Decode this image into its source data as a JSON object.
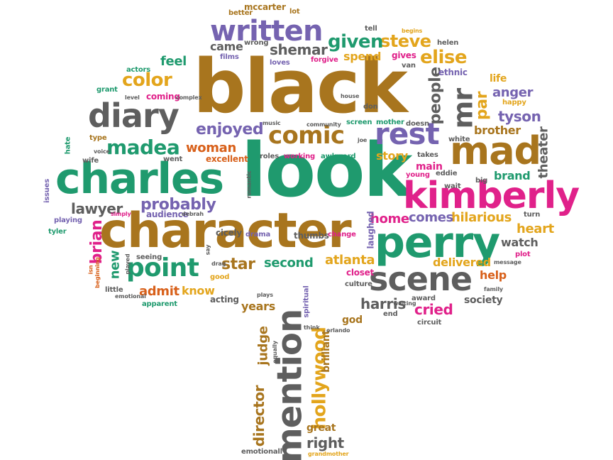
{
  "palette": {
    "brown": "#A8751E",
    "green": "#1F9A6E",
    "gray": "#5E5E5E",
    "purple": "#7563B0",
    "pink": "#E0218A",
    "orange": "#D8601A",
    "gold": "#E3A51C",
    "olive": "#8C9A1E",
    "lightgreen": "#56B64A"
  },
  "words": [
    {
      "text": "black",
      "color": "#A8751E"
    },
    {
      "text": "look",
      "color": "#1F9A6E"
    },
    {
      "text": "character",
      "color": "#A8751E"
    },
    {
      "text": "charles",
      "color": "#1F9A6E"
    },
    {
      "text": "perry",
      "color": "#1F9A6E"
    },
    {
      "text": "kimberly",
      "color": "#E0218A"
    },
    {
      "text": "mad",
      "color": "#A8751E"
    },
    {
      "text": "diary",
      "color": "#5E5E5E"
    },
    {
      "text": "scene",
      "color": "#5E5E5E"
    },
    {
      "text": "mention",
      "color": "#5E5E5E"
    },
    {
      "text": "rest",
      "color": "#7563B0"
    },
    {
      "text": "comic",
      "color": "#A8751E"
    },
    {
      "text": "point",
      "color": "#1F9A6E"
    },
    {
      "text": "written",
      "color": "#7563B0"
    },
    {
      "text": "mr",
      "color": "#5E5E5E"
    },
    {
      "text": "madea",
      "color": "#1F9A6E"
    },
    {
      "text": "color",
      "color": "#E3A51C"
    },
    {
      "text": "hollywood",
      "color": "#E3A51C"
    },
    {
      "text": "probably",
      "color": "#7563B0"
    },
    {
      "text": "enjoyed",
      "color": "#7563B0"
    },
    {
      "text": "lawyer",
      "color": "#5E5E5E"
    },
    {
      "text": "elise",
      "color": "#E3A51C"
    },
    {
      "text": "steve",
      "color": "#E3A51C"
    },
    {
      "text": "given",
      "color": "#1F9A6E"
    },
    {
      "text": "shemar",
      "color": "#5E5E5E"
    },
    {
      "text": "people",
      "color": "#5E5E5E"
    },
    {
      "text": "par",
      "color": "#E3A51C"
    },
    {
      "text": "tyson",
      "color": "#7563B0"
    },
    {
      "text": "brother",
      "color": "#A8751E"
    },
    {
      "text": "anger",
      "color": "#7563B0"
    },
    {
      "text": "theater",
      "color": "#5E5E5E"
    },
    {
      "text": "hilarious",
      "color": "#E3A51C"
    },
    {
      "text": "comes",
      "color": "#7563B0"
    },
    {
      "text": "home",
      "color": "#E0218A"
    },
    {
      "text": "heart",
      "color": "#E3A51C"
    },
    {
      "text": "watch",
      "color": "#5E5E5E"
    },
    {
      "text": "delivered",
      "color": "#E3A51C"
    },
    {
      "text": "atlanta",
      "color": "#E3A51C"
    },
    {
      "text": "second",
      "color": "#1F9A6E"
    },
    {
      "text": "star",
      "color": "#A8751E"
    },
    {
      "text": "cried",
      "color": "#E0218A"
    },
    {
      "text": "harris",
      "color": "#5E5E5E"
    },
    {
      "text": "help",
      "color": "#D8601A"
    },
    {
      "text": "society",
      "color": "#5E5E5E"
    },
    {
      "text": "years",
      "color": "#A8751E"
    },
    {
      "text": "admit",
      "color": "#D8601A"
    },
    {
      "text": "know",
      "color": "#E3A51C"
    },
    {
      "text": "brian",
      "color": "#E0218A"
    },
    {
      "text": "new",
      "color": "#1F9A6E"
    },
    {
      "text": "woman",
      "color": "#D8601A"
    },
    {
      "text": "feel",
      "color": "#1F9A6E"
    },
    {
      "text": "came",
      "color": "#5E5E5E"
    },
    {
      "text": "spend",
      "color": "#E3A51C"
    },
    {
      "text": "story",
      "color": "#E3A51C"
    },
    {
      "text": "main",
      "color": "#E0218A"
    },
    {
      "text": "brand",
      "color": "#1F9A6E"
    },
    {
      "text": "director",
      "color": "#A8751E"
    },
    {
      "text": "judge",
      "color": "#A8751E"
    },
    {
      "text": "right",
      "color": "#5E5E5E"
    },
    {
      "text": "great",
      "color": "#A8751E"
    },
    {
      "text": "god",
      "color": "#A8751E"
    },
    {
      "text": "brilliant",
      "color": "#A8751E"
    },
    {
      "text": "emotionally",
      "color": "#5E5E5E"
    },
    {
      "text": "acting",
      "color": "#5E5E5E"
    },
    {
      "text": "audience",
      "color": "#7563B0"
    },
    {
      "text": "cicely",
      "color": "#5E5E5E"
    },
    {
      "text": "thumbs",
      "color": "#5E5E5E"
    },
    {
      "text": "laughed",
      "color": "#7563B0"
    },
    {
      "text": "closet",
      "color": "#E0218A"
    },
    {
      "text": "life",
      "color": "#E3A51C"
    },
    {
      "text": "mccarter",
      "color": "#A8751E"
    },
    {
      "text": "better",
      "color": "#A8751E"
    },
    {
      "text": "lot",
      "color": "#A8751E"
    },
    {
      "text": "tell",
      "color": "#5E5E5E"
    },
    {
      "text": "films",
      "color": "#7563B0"
    },
    {
      "text": "loves",
      "color": "#7563B0"
    },
    {
      "text": "forgive",
      "color": "#E0218A"
    },
    {
      "text": "gives",
      "color": "#E0218A"
    },
    {
      "text": "ethnic",
      "color": "#7563B0"
    },
    {
      "text": "actors",
      "color": "#1F9A6E"
    },
    {
      "text": "coming",
      "color": "#E0218A"
    },
    {
      "text": "grant",
      "color": "#1F9A6E"
    },
    {
      "text": "type",
      "color": "#A8751E"
    },
    {
      "text": "hate",
      "color": "#1F9A6E"
    },
    {
      "text": "wife",
      "color": "#5E5E5E"
    },
    {
      "text": "excellent",
      "color": "#D8601A"
    },
    {
      "text": "roles",
      "color": "#5E5E5E"
    },
    {
      "text": "working",
      "color": "#E0218A"
    },
    {
      "text": "awkward",
      "color": "#1F9A6E"
    },
    {
      "text": "mother",
      "color": "#1F9A6E"
    },
    {
      "text": "screen",
      "color": "#1F9A6E"
    },
    {
      "text": "eddie",
      "color": "#5E5E5E"
    },
    {
      "text": "big",
      "color": "#5E5E5E"
    },
    {
      "text": "turn",
      "color": "#5E5E5E"
    },
    {
      "text": "plot",
      "color": "#E0218A"
    },
    {
      "text": "playing",
      "color": "#7563B0"
    },
    {
      "text": "tyler",
      "color": "#1F9A6E"
    },
    {
      "text": "issues",
      "color": "#7563B0"
    },
    {
      "text": "drama",
      "color": "#7563B0"
    },
    {
      "text": "change",
      "color": "#E0218A"
    },
    {
      "text": "seeing",
      "color": "#5E5E5E"
    },
    {
      "text": "good",
      "color": "#E3A51C"
    },
    {
      "text": "little",
      "color": "#5E5E5E"
    },
    {
      "text": "apparent",
      "color": "#1F9A6E"
    },
    {
      "text": "spiritual",
      "color": "#7563B0"
    },
    {
      "text": "culture",
      "color": "#5E5E5E"
    },
    {
      "text": "end",
      "color": "#5E5E5E"
    },
    {
      "text": "circuit",
      "color": "#5E5E5E"
    },
    {
      "text": "award",
      "color": "#5E5E5E"
    },
    {
      "text": "helen",
      "color": "#5E5E5E"
    },
    {
      "text": "van",
      "color": "#5E5E5E"
    },
    {
      "text": "happy",
      "color": "#E3A51C"
    },
    {
      "text": "went",
      "color": "#5E5E5E"
    },
    {
      "text": "wait",
      "color": "#5E5E5E"
    },
    {
      "text": "young",
      "color": "#E0218A"
    },
    {
      "text": "takes",
      "color": "#5E5E5E"
    },
    {
      "text": "white",
      "color": "#5E5E5E"
    },
    {
      "text": "don",
      "color": "#5E5E5E"
    },
    {
      "text": "doesn",
      "color": "#5E5E5E"
    },
    {
      "text": "wrong",
      "color": "#5E5E5E"
    },
    {
      "text": "music",
      "color": "#5E5E5E"
    },
    {
      "text": "community",
      "color": "#5E5E5E"
    },
    {
      "text": "level",
      "color": "#5E5E5E"
    },
    {
      "text": "complex",
      "color": "#5E5E5E"
    },
    {
      "text": "house",
      "color": "#5E5E5E"
    },
    {
      "text": "voice",
      "color": "#5E5E5E"
    },
    {
      "text": "debrah",
      "color": "#5E5E5E"
    },
    {
      "text": "simply",
      "color": "#E0218A"
    },
    {
      "text": "romantic",
      "color": "#5E5E5E"
    },
    {
      "text": "beginning",
      "color": "#D8601A"
    },
    {
      "text": "isn",
      "color": "#D8601A"
    },
    {
      "text": "played",
      "color": "#5E5E5E"
    },
    {
      "text": "emotional",
      "color": "#5E5E5E"
    },
    {
      "text": "drag",
      "color": "#5E5E5E"
    },
    {
      "text": "say",
      "color": "#5E5E5E"
    },
    {
      "text": "plays",
      "color": "#5E5E5E"
    },
    {
      "text": "waiting",
      "color": "#5E5E5E"
    },
    {
      "text": "message",
      "color": "#5E5E5E"
    },
    {
      "text": "family",
      "color": "#5E5E5E"
    },
    {
      "text": "think",
      "color": "#5E5E5E"
    },
    {
      "text": "orlando",
      "color": "#5E5E5E"
    },
    {
      "text": "equally",
      "color": "#5E5E5E"
    },
    {
      "text": "grandmother",
      "color": "#E3A51C"
    },
    {
      "text": "begins",
      "color": "#E3A51C"
    },
    {
      "text": "joe",
      "color": "#5E5E5E"
    }
  ]
}
